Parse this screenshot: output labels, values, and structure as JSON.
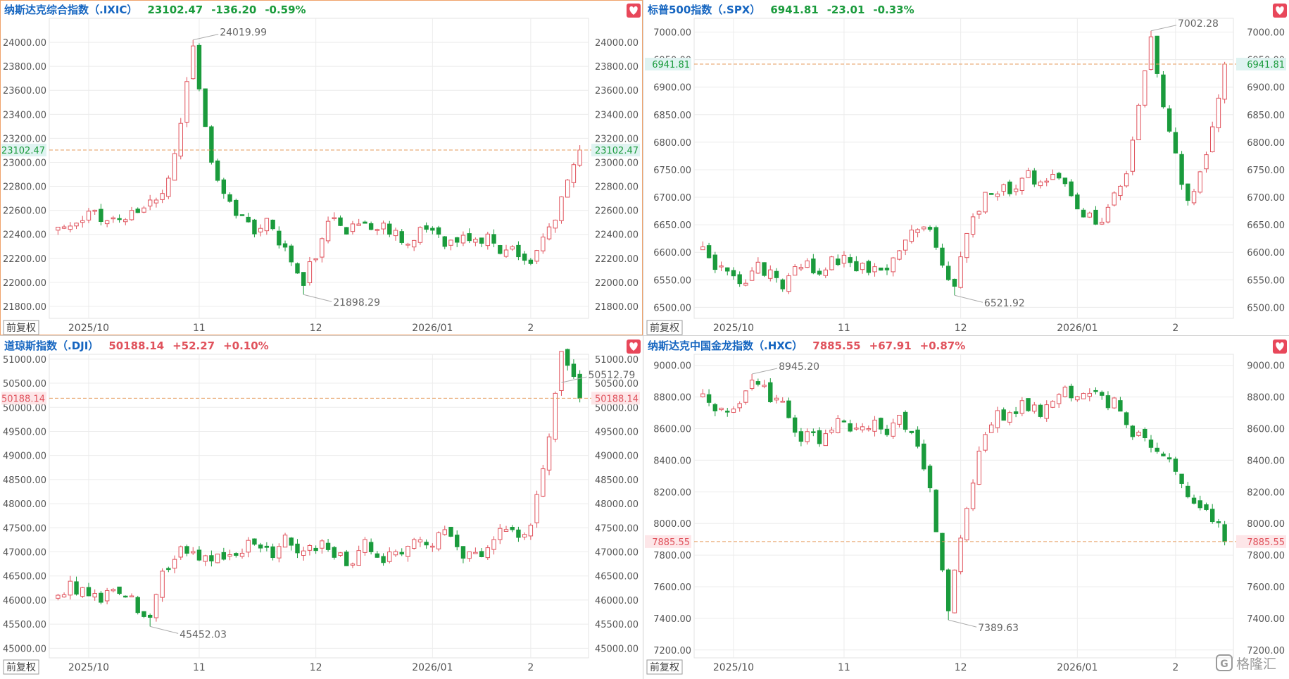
{
  "colors": {
    "up": "#e0525c",
    "down": "#1a9b3c",
    "dash": "#e59a5b",
    "grid": "#ececec",
    "axis_text": "#555555",
    "name_color": "#1565c0",
    "watermark": "#9a9a9a",
    "panel_border_active": "#f0a36b",
    "panel_border": "#d0d0d0"
  },
  "icons": [
    "heart-icon",
    "brand-logo-icon"
  ],
  "watermark": "格隆汇",
  "chart_data": [
    {
      "type": "candlestick",
      "name": "纳斯达克综合指数（.IXIC）",
      "price": "23102.47",
      "change": "-136.20",
      "pct": "-0.59%",
      "direction": "down",
      "price_tag": "23102.47",
      "current": 23102.47,
      "adjust_button": "前复权",
      "ylim": [
        21700,
        24200
      ],
      "yticks": [
        21800,
        22000,
        22200,
        22400,
        22600,
        22800,
        23000,
        23200,
        23400,
        23600,
        23800,
        24000
      ],
      "ytick_labels": [
        "21800.00",
        "22000.00",
        "22200.00",
        "22400.00",
        "22600.00",
        "22800.00",
        "23000.00",
        "23200.00",
        "23400.00",
        "23600.00",
        "23800.00",
        "24000.00"
      ],
      "xtick_labels": [
        "2025/10",
        "11",
        "12",
        "2026/01",
        "2"
      ],
      "xtick_index": [
        5,
        23,
        42,
        61,
        77
      ],
      "max_label": "24019.99",
      "max_value": 24019.99,
      "max_index": 22,
      "min_label": "21898.29",
      "min_value": 21898.29,
      "min_index": 40,
      "seed": 11,
      "start": 22460
    },
    {
      "type": "candlestick",
      "name": "标普500指数（.SPX）",
      "price": "6941.81",
      "change": "-23.01",
      "pct": "-0.33%",
      "direction": "down",
      "price_tag": "6941.81",
      "current": 6941.81,
      "adjust_button": "前复权",
      "ylim": [
        6480,
        7025
      ],
      "yticks": [
        6500,
        6550,
        6600,
        6650,
        6700,
        6750,
        6800,
        6850,
        6900,
        6950,
        7000
      ],
      "ytick_labels": [
        "6500.00",
        "6550.00",
        "6600.00",
        "6650.00",
        "6700.00",
        "6750.00",
        "6800.00",
        "6850.00",
        "6900.00",
        "6950.00",
        "7000.00"
      ],
      "xtick_labels": [
        "2025/10",
        "11",
        "12",
        "2026/01",
        "2"
      ],
      "xtick_index": [
        5,
        23,
        42,
        61,
        77
      ],
      "max_label": "7002.28",
      "max_value": 7002.28,
      "max_index": 73,
      "min_label": "6521.92",
      "min_value": 6521.92,
      "min_index": 41,
      "seed": 23,
      "start": 6610
    },
    {
      "type": "candlestick",
      "name": "道琼斯指数（.DJI）",
      "price": "50188.14",
      "change": "+52.27",
      "pct": "+0.10%",
      "direction": "up",
      "price_tag": "50188.14",
      "current": 50188.14,
      "adjust_button": "前复权",
      "ylim": [
        44800,
        51100
      ],
      "yticks": [
        45000,
        45500,
        46000,
        46500,
        47000,
        47500,
        48000,
        48500,
        49000,
        49500,
        50000,
        50500,
        51000
      ],
      "ytick_labels": [
        "45000.00",
        "45500.00",
        "46000.00",
        "46500.00",
        "47000.00",
        "47500.00",
        "48000.00",
        "48500.00",
        "49000.00",
        "49500.00",
        "50000.00",
        "50500.00",
        "51000.00"
      ],
      "xtick_labels": [
        "2025/10",
        "11",
        "12",
        "2026/01",
        "2"
      ],
      "xtick_index": [
        5,
        23,
        42,
        61,
        77
      ],
      "max_label": "50512.79",
      "max_value": 50512.79,
      "max_index": 82,
      "min_label": "45452.03",
      "min_value": 45452.03,
      "min_index": 15,
      "seed": 37,
      "start": 46100
    },
    {
      "type": "candlestick",
      "name": "纳斯达克中国金龙指数（.HXC）",
      "price": "7885.55",
      "change": "+67.91",
      "pct": "+0.87%",
      "direction": "up",
      "price_tag": "7885.55",
      "current": 7885.55,
      "adjust_button": "前复权",
      "ylim": [
        7150,
        9070
      ],
      "yticks": [
        7200,
        7400,
        7600,
        7800,
        8000,
        8200,
        8400,
        8600,
        8800,
        9000
      ],
      "ytick_labels": [
        "7200.00",
        "7400.00",
        "7600.00",
        "7800.00",
        "8000.00",
        "8200.00",
        "8400.00",
        "8600.00",
        "8800.00",
        "9000.00"
      ],
      "xtick_labels": [
        "2025/10",
        "11",
        "12",
        "2026/01",
        "2"
      ],
      "xtick_index": [
        5,
        23,
        42,
        61,
        77
      ],
      "max_label": "8945.20",
      "max_value": 8945.2,
      "max_index": 8,
      "min_label": "7389.63",
      "min_value": 7389.63,
      "min_index": 40,
      "seed": 51,
      "start": 8820
    }
  ]
}
